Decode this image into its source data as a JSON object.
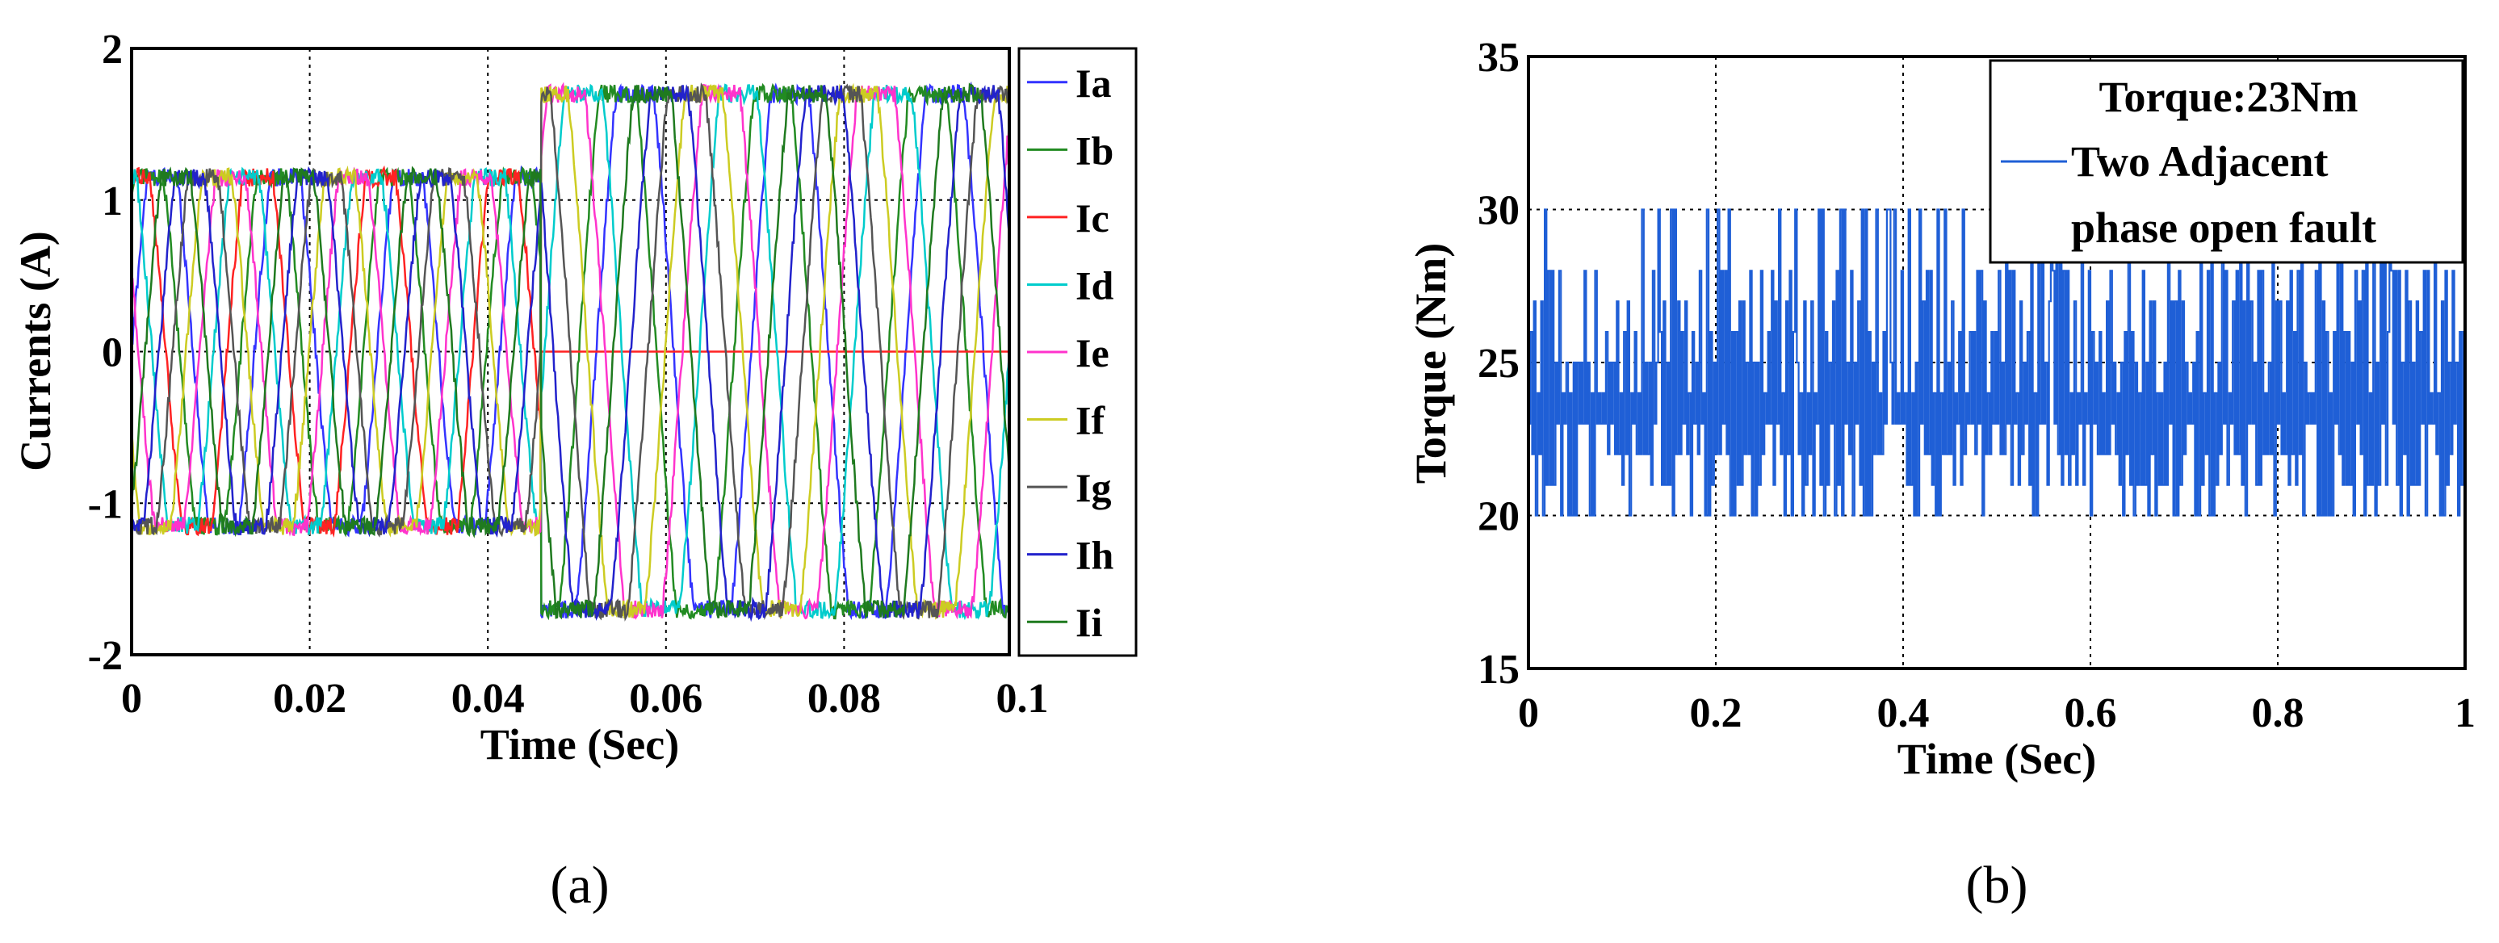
{
  "figure": {
    "panel_labels": [
      "(a)",
      "(b)"
    ]
  },
  "chart_data": [
    {
      "type": "line",
      "panel": "(a)",
      "xlabel": "Time (Sec)",
      "ylabel": "Currents (A)",
      "xlim": [
        0,
        0.1
      ],
      "ylim": [
        -2,
        2
      ],
      "xticks": [
        "0",
        "0.02",
        "0.04",
        "0.06",
        "0.08",
        "0.1"
      ],
      "yticks": [
        "-2",
        "-1",
        "0",
        "1",
        "2"
      ],
      "grid": true,
      "legend_position": "right",
      "fault_time": 0.046,
      "series": [
        {
          "name": "Ia",
          "color": "#3333ff",
          "phase": 0,
          "amp_pre": 1.15,
          "amp_post": 1.7,
          "after_fault": "active"
        },
        {
          "name": "Ib",
          "color": "#228b22",
          "phase": 40,
          "amp_pre": 1.15,
          "amp_post": 1.7,
          "after_fault": "active"
        },
        {
          "name": "Ic",
          "color": "#ff2222",
          "phase": 80,
          "amp_pre": 1.15,
          "amp_post": 0,
          "after_fault": "zero"
        },
        {
          "name": "Id",
          "color": "#00cccc",
          "phase": 120,
          "amp_pre": 1.15,
          "amp_post": 1.7,
          "after_fault": "active"
        },
        {
          "name": "Ie",
          "color": "#ff33cc",
          "phase": 160,
          "amp_pre": 1.15,
          "amp_post": 1.7,
          "after_fault": "active"
        },
        {
          "name": "If",
          "color": "#cccc22",
          "phase": 200,
          "amp_pre": 1.15,
          "amp_post": 1.7,
          "after_fault": "active"
        },
        {
          "name": "Ig",
          "color": "#555555",
          "phase": 240,
          "amp_pre": 1.15,
          "amp_post": 1.7,
          "after_fault": "active"
        },
        {
          "name": "Ih",
          "color": "#2222cc",
          "phase": 280,
          "amp_pre": 1.15,
          "amp_post": 1.7,
          "after_fault": "active"
        },
        {
          "name": "Ii",
          "color": "#1f7a1f",
          "phase": 320,
          "amp_pre": 1.15,
          "amp_post": 1.7,
          "after_fault": "active"
        }
      ],
      "frequency_hz": 50
    },
    {
      "type": "line",
      "panel": "(b)",
      "xlabel": "Time (Sec)",
      "ylabel": "Torque (Nm)",
      "xlim": [
        0,
        1
      ],
      "ylim": [
        15,
        35
      ],
      "xticks": [
        "0",
        "0.2",
        "0.4",
        "0.6",
        "0.8",
        "1"
      ],
      "yticks": [
        "15",
        "20",
        "25",
        "30",
        "35"
      ],
      "grid": true,
      "legend_position": "top-right",
      "legend_title": "Torque:23Nm",
      "series": [
        {
          "name": "Two Adjacent phase open fault",
          "name_lines": [
            "Two Adjacent",
            "phase open fault"
          ],
          "color": "#1f5fd6"
        }
      ],
      "torque_levels": [
        20,
        21,
        22,
        23,
        24,
        25,
        26,
        27,
        28,
        30
      ],
      "torque_mean": 23
    }
  ]
}
